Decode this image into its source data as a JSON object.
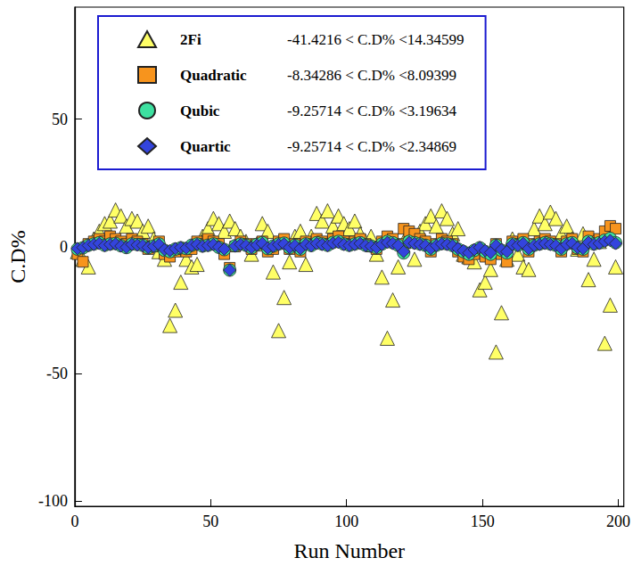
{
  "chart_data": {
    "type": "scatter",
    "x_label": "Run Number",
    "y_label": "C.D%",
    "xlim": [
      0,
      202
    ],
    "xticks": [
      0,
      50,
      100,
      150,
      200
    ],
    "ylim": [
      -102,
      94
    ],
    "yticks": [
      -100,
      -50,
      0,
      50
    ],
    "grid": false,
    "legend": "top-left",
    "x": [
      1,
      3,
      5,
      7,
      9,
      11,
      13,
      15,
      17,
      19,
      21,
      23,
      25,
      27,
      29,
      31,
      33,
      35,
      37,
      39,
      41,
      43,
      45,
      47,
      49,
      51,
      53,
      55,
      57,
      59,
      61,
      63,
      65,
      67,
      69,
      71,
      73,
      75,
      77,
      79,
      81,
      83,
      85,
      87,
      89,
      91,
      93,
      95,
      97,
      99,
      101,
      103,
      105,
      107,
      109,
      111,
      113,
      115,
      117,
      119,
      121,
      123,
      125,
      127,
      129,
      131,
      133,
      135,
      137,
      139,
      141,
      143,
      145,
      147,
      149,
      151,
      153,
      155,
      157,
      159,
      161,
      163,
      165,
      167,
      169,
      171,
      173,
      175,
      177,
      179,
      181,
      183,
      185,
      187,
      189,
      191,
      193,
      195,
      197,
      199
    ],
    "series": [
      {
        "name": "2Fi",
        "range_label": "-41.4216 < C.D% <14.34599",
        "color": "#ffff66",
        "marker": "triangle",
        "values": [
          -2,
          -5,
          -8,
          3,
          6,
          9,
          10,
          14.34599,
          12,
          8,
          11,
          10,
          6,
          8,
          3,
          -2,
          -5,
          -31,
          -25,
          -14,
          -5,
          -8,
          -7,
          4,
          7,
          11,
          9,
          6,
          10,
          7,
          4,
          2,
          -3,
          1,
          9,
          6,
          -10,
          -33,
          -20,
          -6,
          4,
          6,
          -7,
          4,
          13,
          10,
          14,
          8,
          12,
          9,
          7,
          10,
          5,
          2,
          4,
          -3,
          -12,
          -36,
          -21,
          -8,
          2,
          5,
          -5,
          6,
          9,
          12,
          8,
          14,
          11,
          5,
          7,
          -3,
          -4,
          -6,
          -17,
          -14,
          -9,
          -41.4216,
          -26,
          -5,
          3,
          -3,
          -8,
          -9,
          7,
          12,
          9,
          13.5,
          11,
          5,
          8,
          3,
          -1,
          5,
          -13,
          -5,
          2,
          -38,
          -23,
          -8
        ]
      },
      {
        "name": "Quadratic",
        "range_label": "-8.34286 < C.D% <8.09399",
        "color": "#f7941d",
        "marker": "rect",
        "values": [
          -3,
          -6,
          1,
          2,
          3,
          2,
          4,
          3,
          2,
          1,
          3,
          2,
          1,
          -1,
          0,
          2,
          -3,
          -4,
          -2,
          -1,
          -2,
          -1,
          2,
          1,
          3,
          2,
          1,
          -3,
          -8.34286,
          0,
          2,
          1,
          -1,
          1,
          2,
          -2,
          -1,
          2,
          3,
          -1,
          1,
          -2,
          2,
          1,
          3,
          2,
          1,
          3,
          4,
          2,
          1,
          2,
          3,
          1,
          0,
          -1,
          2,
          4,
          3,
          1,
          7,
          6,
          5,
          3,
          2,
          -2,
          1,
          3,
          2,
          1,
          -2,
          -4,
          -5,
          -3,
          -1,
          -4,
          -5,
          1,
          -3,
          -6,
          2,
          1,
          3,
          -2,
          1,
          2,
          3,
          2,
          1,
          -2,
          2,
          3,
          -1,
          -2,
          4,
          2,
          3,
          6,
          8.09399,
          7
        ]
      },
      {
        "name": "Qubic",
        "range_label": "-9.25714 < C.D% <3.19634",
        "color": "#3de0a0",
        "marker": "circle",
        "values": [
          -1,
          -0.5,
          0.5,
          1,
          1.5,
          0.5,
          1,
          1.2,
          0.3,
          -0.4,
          1,
          0.8,
          0.5,
          -0.5,
          0.2,
          1,
          -1.5,
          -2,
          -1,
          -0.5,
          -0.8,
          0.5,
          1,
          0.2,
          0.5,
          1,
          -0.3,
          -1.2,
          -9.25714,
          0.3,
          1,
          0.5,
          -0.5,
          0.8,
          1.5,
          -0.8,
          0.2,
          1,
          1.3,
          -0.5,
          0.5,
          -1,
          1,
          0.4,
          1.5,
          1,
          0.5,
          1.6,
          2,
          1,
          0.5,
          1,
          1.5,
          0.5,
          0.2,
          -0.5,
          1,
          2,
          1.5,
          0.5,
          -2.5,
          2,
          1.5,
          1,
          0.5,
          -1,
          0.5,
          1.2,
          1,
          0.4,
          -1,
          -2,
          -3,
          -1.5,
          -0.5,
          -2,
          -3,
          0.5,
          -1.5,
          -2.5,
          1,
          0.5,
          1.5,
          -1,
          0.5,
          1,
          1.5,
          1,
          0.5,
          -1,
          1,
          1.5,
          -0.5,
          -1,
          2,
          1,
          1.5,
          2.5,
          3.19634,
          1.5
        ]
      },
      {
        "name": "Quartic",
        "range_label": "-9.25714 < C.D% <2.34869",
        "color": "#3344dd",
        "marker": "diamond",
        "values": [
          -0.8,
          -0.4,
          0.4,
          0.8,
          1.2,
          0.4,
          0.8,
          1,
          0.2,
          -0.3,
          0.8,
          0.6,
          0.4,
          -0.4,
          0.1,
          0.8,
          -1.2,
          -1.6,
          -0.8,
          -0.4,
          -0.6,
          0.4,
          0.8,
          0.1,
          0.4,
          0.8,
          -0.2,
          -1,
          -9.25714,
          0.2,
          0.8,
          0.4,
          -0.4,
          0.6,
          1.2,
          -0.6,
          0.1,
          0.8,
          1,
          -0.4,
          0.4,
          -0.8,
          0.8,
          0.3,
          1.2,
          0.8,
          0.4,
          1.3,
          1.6,
          0.8,
          0.4,
          0.8,
          1.2,
          0.4,
          0.1,
          -0.4,
          0.8,
          1.6,
          1.2,
          0.4,
          -2,
          1.6,
          1.2,
          0.8,
          0.4,
          -0.8,
          0.4,
          1,
          0.8,
          0.3,
          -0.8,
          -1.6,
          -2.5,
          -1.2,
          -0.4,
          -1.6,
          -2.4,
          0.4,
          -1.2,
          -2,
          0.8,
          0.4,
          1.2,
          -0.8,
          0.4,
          0.8,
          1.2,
          0.8,
          0.4,
          -0.8,
          0.8,
          1.2,
          -0.4,
          -0.8,
          1.6,
          0.8,
          1.2,
          2,
          2.34869,
          1.2
        ]
      }
    ]
  }
}
